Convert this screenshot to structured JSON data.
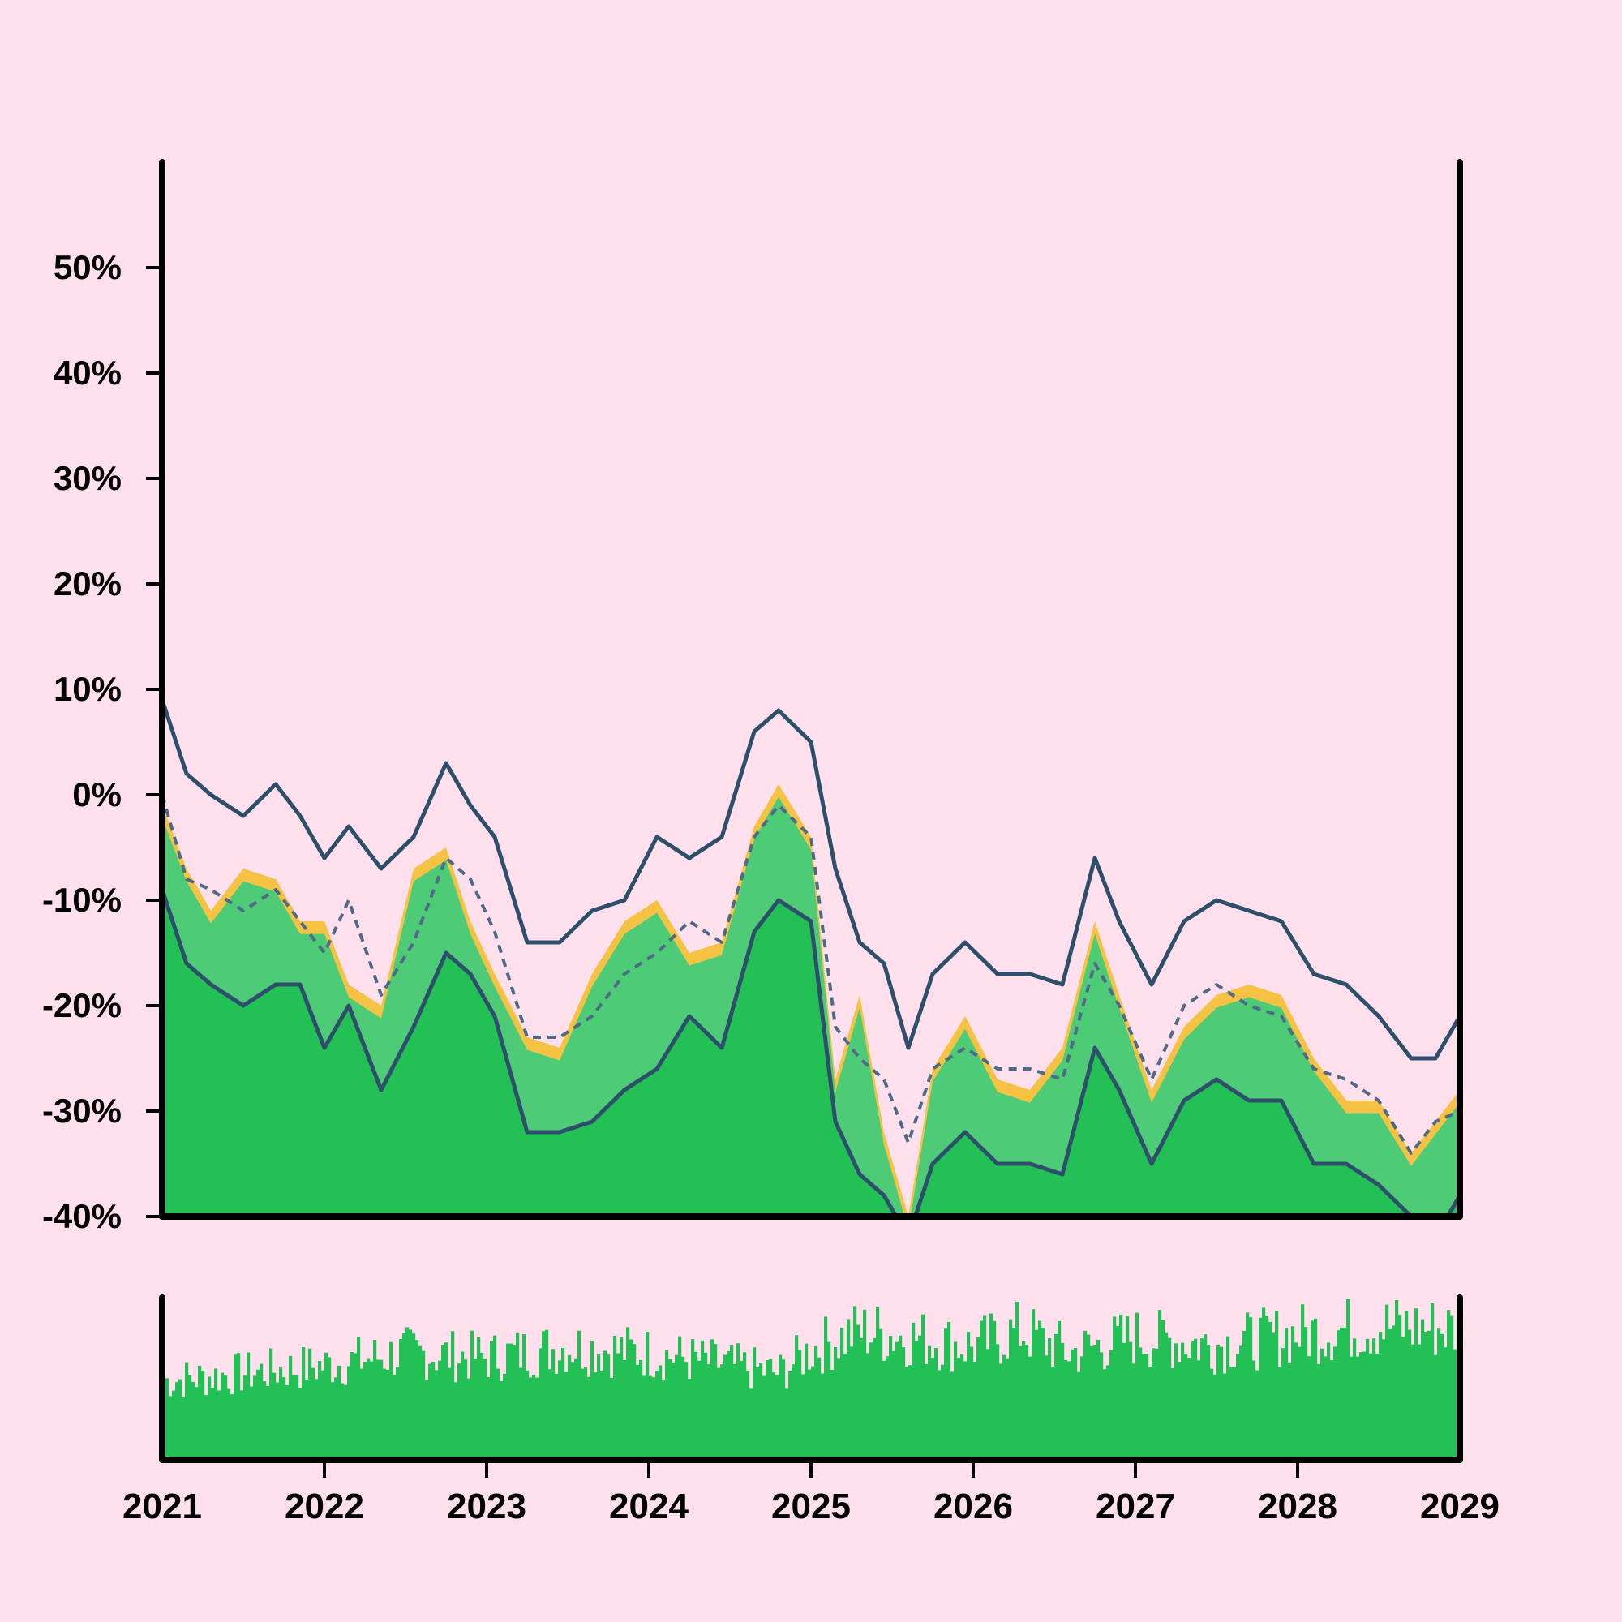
{
  "colors": {
    "background": "#ffe0ec",
    "frame": "#000000",
    "price_fill": "#f6c243",
    "band_fill": "#4ecb76",
    "lower_fill": "#22c055",
    "band_line": "#2d4f6b",
    "mid_line": "#4f6a86",
    "volume": "#22c055"
  },
  "chart_data": [
    {
      "type": "area",
      "title": "",
      "xlabel": "",
      "ylabel": "",
      "x_ticks": [
        "2021",
        "2022",
        "2023",
        "2024",
        "2025",
        "2026",
        "2027",
        "2028",
        "2029"
      ],
      "xlim": [
        "2021",
        "2029"
      ],
      "y_ticks": [
        "-40%",
        "-30%",
        "-20%",
        "-10%",
        "0%",
        "10%",
        "20%",
        "30%",
        "40%",
        "50%"
      ],
      "ylim": [
        -40,
        60
      ],
      "y_unit": "%",
      "grid": false,
      "legend": "none",
      "x": [
        2021.0,
        2021.15,
        2021.3,
        2021.5,
        2021.7,
        2021.85,
        2022.0,
        2022.15,
        2022.35,
        2022.55,
        2022.75,
        2022.9,
        2023.05,
        2023.25,
        2023.45,
        2023.65,
        2023.85,
        2024.05,
        2024.25,
        2024.45,
        2024.65,
        2024.8,
        2025.0,
        2025.15,
        2025.3,
        2025.45,
        2025.6,
        2025.75,
        2025.95,
        2026.15,
        2026.35,
        2026.55,
        2026.75,
        2026.9,
        2027.1,
        2027.3,
        2027.5,
        2027.7,
        2027.9,
        2028.1,
        2028.3,
        2028.5,
        2028.7,
        2028.85,
        2029.0
      ],
      "series": [
        {
          "style": "filled area",
          "values": [
            -1,
            -7,
            -11,
            -7,
            -8,
            -12,
            -12,
            -18,
            -20,
            -7,
            -5,
            -12,
            -17,
            -23,
            -24,
            -17,
            -12,
            -10,
            -15,
            -14,
            -3,
            1,
            -4,
            -27,
            -19,
            -32,
            -40,
            -26,
            -21,
            -27,
            -28,
            -24,
            -12,
            -19,
            -28,
            -22,
            -19,
            -18,
            -19,
            -25,
            -29,
            -29,
            -34,
            -31,
            -28
          ]
        },
        {
          "style": "solid line",
          "values": [
            9,
            2,
            0,
            -2,
            1,
            -2,
            -6,
            -3,
            -7,
            -4,
            3,
            -1,
            -4,
            -14,
            -14,
            -11,
            -10,
            -4,
            -6,
            -4,
            6,
            8,
            5,
            -7,
            -14,
            -16,
            -24,
            -17,
            -14,
            -17,
            -17,
            -18,
            -6,
            -12,
            -18,
            -12,
            -10,
            -11,
            -12,
            -17,
            -18,
            -21,
            -25,
            -25,
            -21
          ]
        },
        {
          "style": "dashed line",
          "values": [
            0,
            -8,
            -9,
            -11,
            -9,
            -12,
            -15,
            -10,
            -19,
            -14,
            -6,
            -8,
            -13,
            -23,
            -23,
            -21,
            -17,
            -15,
            -12,
            -14,
            -4,
            -1,
            -4,
            -22,
            -25,
            -27,
            -33,
            -26,
            -24,
            -26,
            -26,
            -27,
            -16,
            -20,
            -27,
            -20,
            -18,
            -20,
            -21,
            -26,
            -27,
            -29,
            -34,
            -31,
            -30
          ]
        },
        {
          "style": "solid line",
          "values": [
            -9,
            -16,
            -18,
            -20,
            -18,
            -18,
            -24,
            -20,
            -28,
            -22,
            -15,
            -17,
            -21,
            -32,
            -32,
            -31,
            -28,
            -26,
            -21,
            -24,
            -13,
            -10,
            -12,
            -31,
            -36,
            -38,
            -42,
            -35,
            -32,
            -35,
            -35,
            -36,
            -24,
            -28,
            -35,
            -29,
            -27,
            -29,
            -29,
            -35,
            -35,
            -37,
            -40,
            -42,
            -38
          ]
        }
      ]
    },
    {
      "type": "bar",
      "title": "",
      "xlabel": "",
      "ylabel": "",
      "xlim": [
        "2021",
        "2029"
      ],
      "x": [
        2021.0,
        2021.5,
        2022.0,
        2022.5,
        2023.0,
        2023.5,
        2024.0,
        2024.5,
        2024.8,
        2025.0,
        2025.3,
        2025.6,
        2026.0,
        2026.3,
        2026.6,
        2027.0,
        2027.5,
        2028.0,
        2028.5,
        2029.0
      ],
      "values": [
        50,
        55,
        60,
        68,
        65,
        72,
        68,
        60,
        55,
        70,
        82,
        78,
        72,
        82,
        68,
        78,
        73,
        80,
        85,
        83
      ],
      "grid": false,
      "legend": "none"
    }
  ]
}
